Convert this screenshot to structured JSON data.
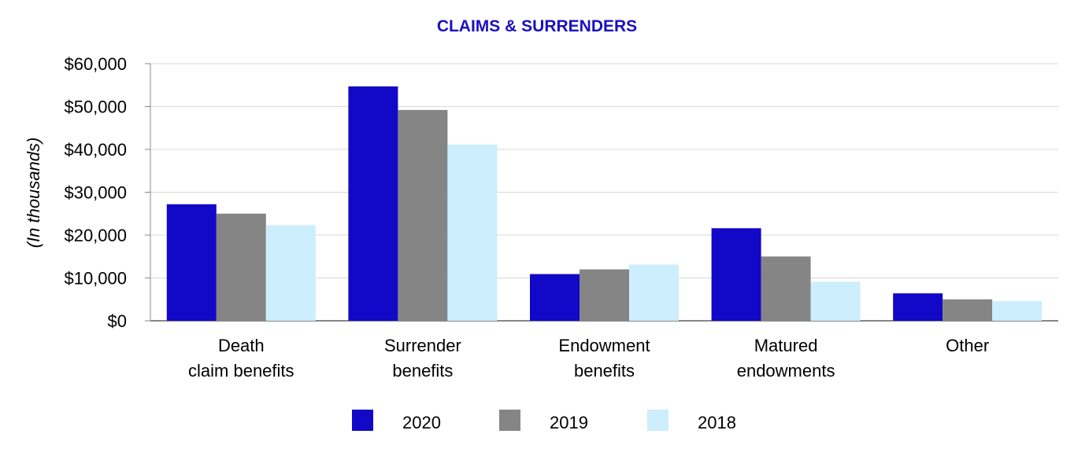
{
  "chart_data": {
    "type": "bar",
    "title": "CLAIMS & SURRENDERS",
    "ylabel": "(In thousands)",
    "xlabel": "",
    "categories": [
      [
        "Death",
        "claim benefits"
      ],
      [
        "Surrender",
        "benefits"
      ],
      [
        "Endowment",
        "benefits"
      ],
      [
        "Matured",
        "endowments"
      ],
      [
        "Other"
      ]
    ],
    "series": [
      {
        "name": "2020",
        "color": "#1208c8",
        "values": [
          27200,
          54700,
          10900,
          21600,
          6400
        ]
      },
      {
        "name": "2019",
        "color": "#858585",
        "values": [
          25000,
          49200,
          12000,
          15000,
          5000
        ]
      },
      {
        "name": "2018",
        "color": "#cdeefd",
        "values": [
          22300,
          41100,
          13100,
          9100,
          4600
        ]
      }
    ],
    "ylim": [
      0,
      60000
    ],
    "yticks": [
      0,
      10000,
      20000,
      30000,
      40000,
      50000,
      60000
    ],
    "ytick_labels": [
      "$0",
      "$10,000",
      "$20,000",
      "$30,000",
      "$40,000",
      "$50,000",
      "$60,000"
    ],
    "grid": true,
    "legend_position": "bottom",
    "title_color": "#1a10c0"
  }
}
